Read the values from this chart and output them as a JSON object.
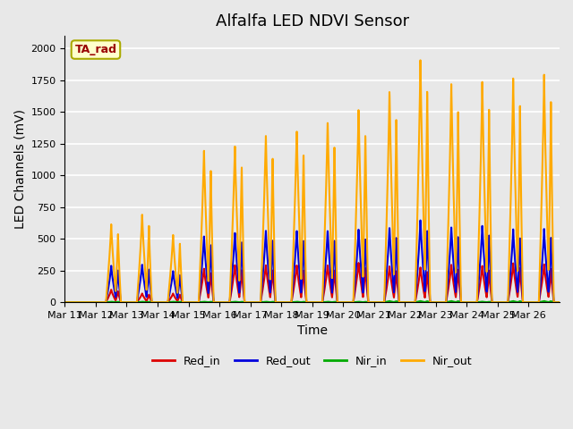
{
  "title": "Alfalfa LED NDVI Sensor",
  "ylabel": "LED Channels (mV)",
  "xlabel": "Time",
  "tag_label": "TA_rad",
  "tag_bg": "#ffffcc",
  "tag_border": "#aaaa00",
  "tag_text_color": "#990000",
  "ylim": [
    0,
    2100
  ],
  "bg_color": "#e8e8e8",
  "x_tick_labels": [
    "Mar 11",
    "Mar 12",
    "Mar 13",
    "Mar 14",
    "Mar 15",
    "Mar 16",
    "Mar 17",
    "Mar 18",
    "Mar 19",
    "Mar 20",
    "Mar 21",
    "Mar 22",
    "Mar 23",
    "Mar 24",
    "Mar 25",
    "Mar 26"
  ],
  "series_names": [
    "Red_in",
    "Red_out",
    "Nir_in",
    "Nir_out"
  ],
  "series_colors": [
    "#dd0000",
    "#0000dd",
    "#00aa00",
    "#ffaa00"
  ],
  "series_lw": [
    1.5,
    1.5,
    1.5,
    1.5
  ],
  "nir_out_peaks": [
    0,
    620,
    700,
    540,
    1220,
    1260,
    1350,
    1390,
    1460,
    1560,
    1700,
    1950,
    1750,
    1760,
    1780,
    1800
  ],
  "red_out_peaks": [
    0,
    290,
    300,
    250,
    530,
    560,
    580,
    580,
    580,
    590,
    600,
    660,
    600,
    610,
    580,
    580
  ],
  "red_in_peaks": [
    0,
    100,
    70,
    70,
    270,
    300,
    300,
    300,
    300,
    320,
    290,
    280,
    300,
    290,
    310,
    300
  ],
  "nir_in_peaks": [
    0,
    5,
    5,
    5,
    5,
    5,
    5,
    5,
    5,
    5,
    10,
    10,
    10,
    5,
    10,
    10
  ],
  "title_fontsize": 13,
  "label_fontsize": 10,
  "tick_fontsize": 8
}
